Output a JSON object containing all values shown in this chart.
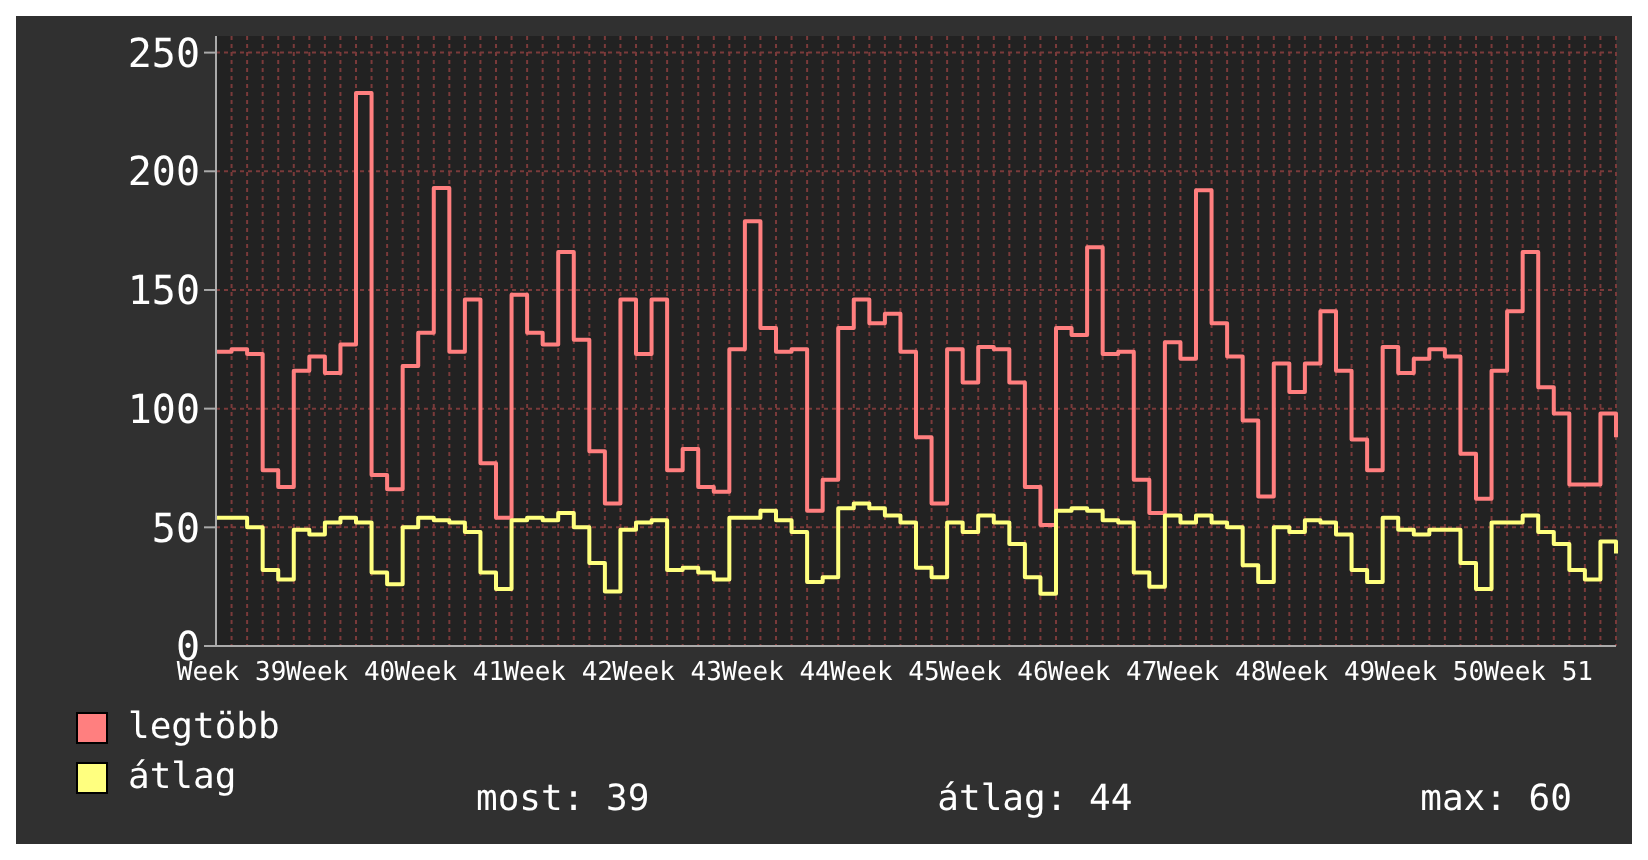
{
  "chart_data": {
    "type": "step",
    "categories": [
      null,
      "Week 39",
      null,
      null,
      null,
      null,
      null,
      null,
      "Week 40",
      null,
      null,
      null,
      null,
      null,
      null,
      "Week 41",
      null,
      null,
      null,
      null,
      null,
      null,
      "Week 42",
      null,
      null,
      null,
      null,
      null,
      null,
      "Week 43",
      null,
      null,
      null,
      null,
      null,
      null,
      "Week 44",
      null,
      null,
      null,
      null,
      null,
      null,
      "Week 45",
      null,
      null,
      null,
      null,
      null,
      null,
      "Week 46",
      null,
      null,
      null,
      null,
      null,
      null,
      "Week 47",
      null,
      null,
      null,
      null,
      null,
      null,
      "Week 48",
      null,
      null,
      null,
      null,
      null,
      null,
      "Week 49",
      null,
      null,
      null,
      null,
      null,
      null,
      "Week 50",
      null,
      null,
      null,
      null,
      null,
      null,
      "Week 51",
      null,
      null,
      null,
      null,
      null
    ],
    "series": [
      {
        "name": "legtöbb",
        "color": "#ff7f7f",
        "values": [
          124,
          125,
          123,
          74,
          67,
          116,
          122,
          115,
          127,
          233,
          72,
          66,
          118,
          132,
          193,
          124,
          146,
          77,
          54,
          148,
          132,
          127,
          166,
          129,
          82,
          60,
          146,
          123,
          146,
          74,
          83,
          67,
          65,
          125,
          179,
          134,
          124,
          125,
          57,
          70,
          134,
          146,
          136,
          140,
          124,
          88,
          60,
          125,
          111,
          126,
          125,
          111,
          67,
          51,
          134,
          131,
          168,
          123,
          124,
          70,
          56,
          128,
          121,
          192,
          136,
          122,
          95,
          63,
          119,
          107,
          119,
          141,
          116,
          87,
          74,
          126,
          115,
          121,
          125,
          122,
          81,
          62,
          116,
          141,
          166,
          109,
          98,
          68,
          68,
          98,
          88
        ]
      },
      {
        "name": "átlag",
        "color": "#ffff7f",
        "values": [
          54,
          54,
          50,
          32,
          28,
          49,
          47,
          52,
          54,
          52,
          31,
          26,
          50,
          54,
          53,
          52,
          48,
          31,
          24,
          53,
          54,
          53,
          56,
          50,
          35,
          23,
          49,
          52,
          53,
          32,
          33,
          31,
          28,
          54,
          54,
          57,
          53,
          48,
          27,
          29,
          58,
          60,
          58,
          55,
          52,
          33,
          29,
          52,
          48,
          55,
          52,
          43,
          29,
          22,
          57,
          58,
          57,
          53,
          52,
          31,
          25,
          55,
          52,
          55,
          52,
          50,
          34,
          27,
          50,
          48,
          53,
          52,
          47,
          32,
          27,
          54,
          49,
          47,
          49,
          49,
          35,
          24,
          52,
          52,
          55,
          48,
          43,
          32,
          28,
          44,
          39
        ]
      }
    ],
    "ylim": [
      0,
      257
    ],
    "yticks": [
      0,
      50,
      100,
      150,
      200,
      250
    ],
    "grid": true,
    "legend": "bottom left",
    "annotations": [
      "most: 39",
      "átlag: 44",
      "max: 60"
    ]
  }
}
